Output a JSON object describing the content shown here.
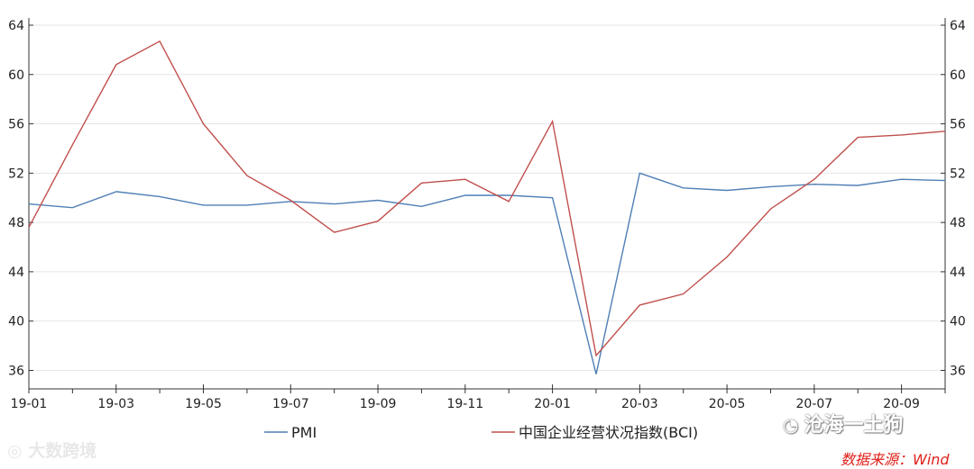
{
  "chart_data": {
    "type": "line",
    "x": [
      "19-01",
      "19-02",
      "19-03",
      "19-04",
      "19-05",
      "19-06",
      "19-07",
      "19-08",
      "19-09",
      "19-10",
      "19-11",
      "19-12",
      "20-01",
      "20-02",
      "20-03",
      "20-04",
      "20-05",
      "20-06",
      "20-07",
      "20-08",
      "20-09",
      "20-10"
    ],
    "x_tick_labels": [
      "19-01",
      "19-03",
      "19-05",
      "19-07",
      "19-09",
      "19-11",
      "20-01",
      "20-03",
      "20-05",
      "20-07",
      "20-09"
    ],
    "y_ticks": [
      36,
      40,
      44,
      48,
      52,
      56,
      60,
      64
    ],
    "ylim": [
      34.5,
      64
    ],
    "grid": "horizontal",
    "legend_position": "bottom",
    "series": [
      {
        "name": "PMI",
        "color": "#4f7fb5",
        "values": [
          49.5,
          49.2,
          50.5,
          50.1,
          49.4,
          49.4,
          49.7,
          49.5,
          49.8,
          49.3,
          50.2,
          50.2,
          50.0,
          35.7,
          52.0,
          50.8,
          50.6,
          50.9,
          51.1,
          51.0,
          51.5,
          51.4
        ]
      },
      {
        "name": "中国企业经营状况指数(BCI)",
        "color": "#c0504d",
        "values": [
          47.6,
          54.3,
          60.8,
          62.7,
          56.0,
          51.8,
          49.8,
          47.2,
          48.1,
          51.2,
          51.5,
          49.7,
          56.2,
          37.2,
          41.3,
          42.2,
          45.2,
          49.1,
          51.5,
          54.9,
          55.1,
          55.4
        ]
      }
    ]
  },
  "watermarks": {
    "left": "大数跨境",
    "right": "沧海一土狗",
    "right_icon": "wechat-icon",
    "left_icon": "dashuju-logo-icon"
  },
  "source_note": "数据来源：Wind"
}
